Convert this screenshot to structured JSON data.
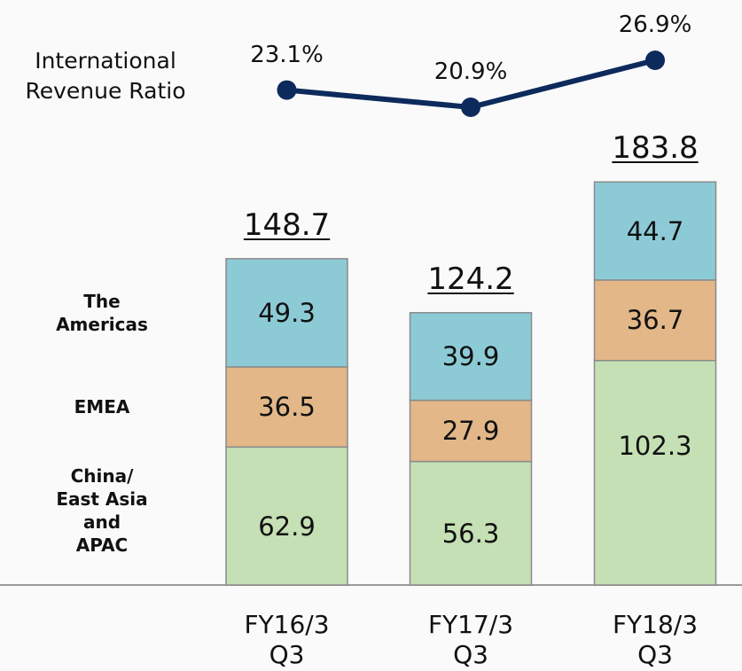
{
  "chart_data": {
    "type": "bar",
    "categories": [
      "FY16/3\nQ3",
      "FY17/3\nQ3",
      "FY18/3\nQ3"
    ],
    "series": [
      {
        "name": "China/\nEast Asia\nand\nAPAC",
        "color": "#c5e0b4",
        "values": [
          62.9,
          56.3,
          102.3
        ]
      },
      {
        "name": "EMEA",
        "color": "#e3b788",
        "values": [
          36.5,
          27.9,
          36.7
        ]
      },
      {
        "name": "The\nAmericas",
        "color": "#8ccbd6",
        "values": [
          49.3,
          39.9,
          44.7
        ]
      }
    ],
    "totals": [
      148.7,
      124.2,
      183.8
    ],
    "line": {
      "type": "line",
      "name": "International\nRevenue Ratio",
      "color": "#0d2a5c",
      "values": [
        23.1,
        20.9,
        26.9
      ],
      "value_labels": [
        "23.1%",
        "20.9%",
        "26.9%"
      ]
    }
  }
}
